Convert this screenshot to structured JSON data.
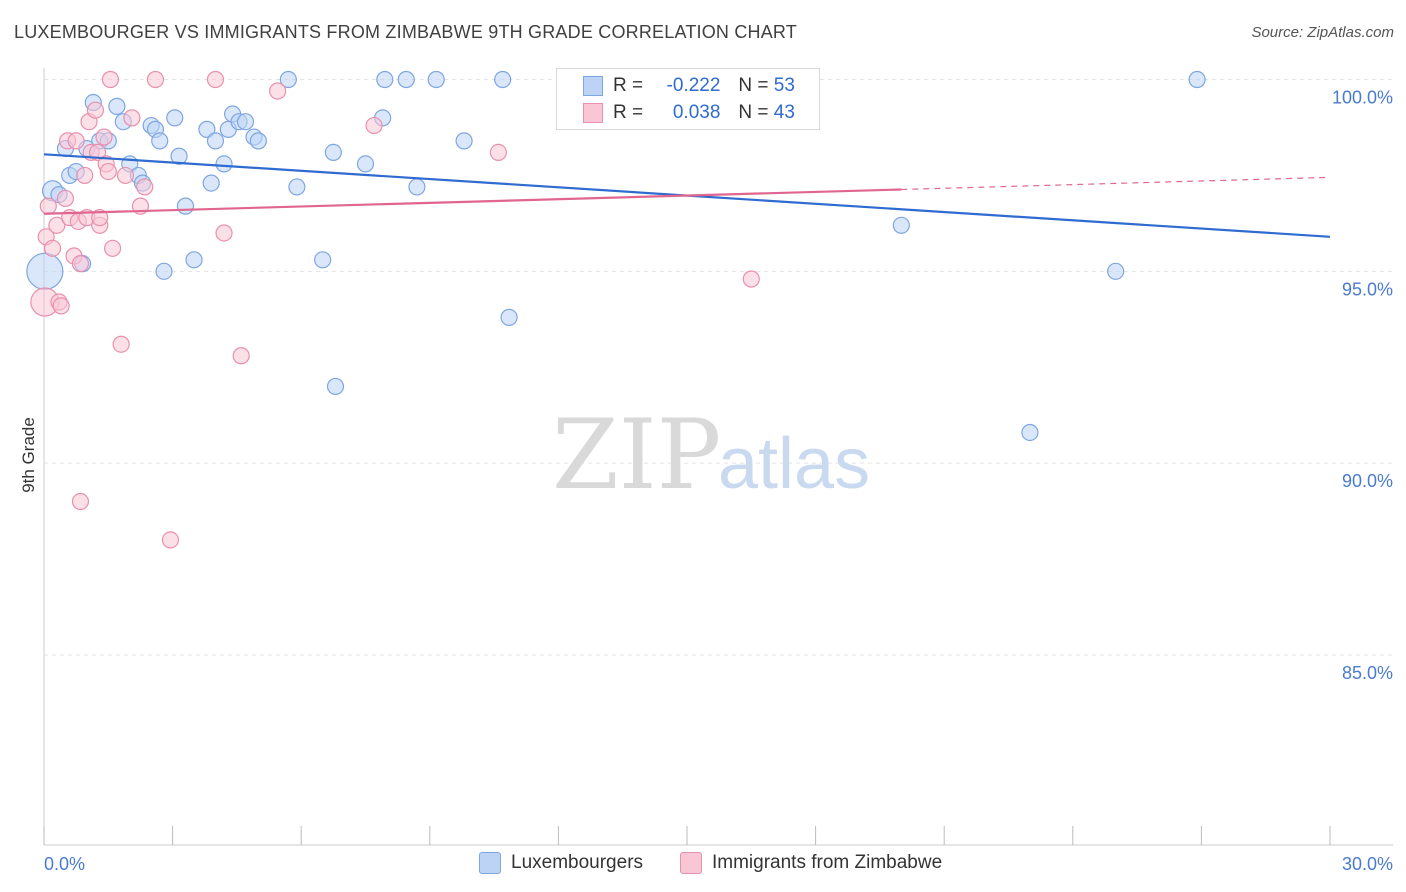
{
  "title": "LUXEMBOURGER VS IMMIGRANTS FROM ZIMBABWE 9TH GRADE CORRELATION CHART",
  "source": "Source: ZipAtlas.com",
  "watermark": {
    "zip": "ZIP",
    "atlas": "atlas"
  },
  "legend": {
    "r_label": "R =",
    "n_label": "N =",
    "rows": [
      {
        "r": "-0.222",
        "n": "53",
        "fill": "#bcd3f5",
        "stroke": "#7ea6e0"
      },
      {
        "r": "0.038",
        "n": "43",
        "fill": "#f9c6d6",
        "stroke": "#e890ad"
      }
    ]
  },
  "bottom_legend": [
    "Luxembourgers",
    "Immigrants from Zimbabwe"
  ],
  "chart_data": {
    "type": "scatter",
    "title": "LUXEMBOURGER VS IMMIGRANTS FROM ZIMBABWE 9TH GRADE CORRELATION CHART",
    "xlabel": "",
    "ylabel": "9th Grade",
    "xlim": [
      0,
      30
    ],
    "ylim": [
      80.5,
      100.7
    ],
    "x_tick_labels": [
      "0.0%",
      "30.0%"
    ],
    "y_ticks": [
      100,
      95,
      90,
      85
    ],
    "y_tick_labels": [
      "100.0%",
      "95.0%",
      "90.0%",
      "85.0%"
    ],
    "grid": true,
    "series": [
      {
        "name": "Luxembourgers",
        "color": "#2f6bd0",
        "fill": "#bcd3f5",
        "stroke": "#7ea6e0",
        "trend": {
          "x0": 0,
          "y0": 98.05,
          "x1": 30,
          "y1": 95.9,
          "solid_until": 30
        },
        "points": [
          [
            0.02,
            95.0,
            18
          ],
          [
            0.2,
            97.1,
            10
          ],
          [
            0.35,
            97.0,
            8
          ],
          [
            0.5,
            98.2,
            8
          ],
          [
            0.6,
            97.5,
            8
          ],
          [
            0.75,
            97.6,
            8
          ],
          [
            0.9,
            95.2,
            8
          ],
          [
            1.0,
            98.2,
            8
          ],
          [
            1.15,
            99.4,
            8
          ],
          [
            1.3,
            98.4,
            8
          ],
          [
            1.5,
            98.4,
            8
          ],
          [
            1.7,
            99.3,
            8
          ],
          [
            1.85,
            98.9,
            8
          ],
          [
            2.0,
            97.8,
            8
          ],
          [
            2.2,
            97.5,
            8
          ],
          [
            2.3,
            97.3,
            8
          ],
          [
            2.5,
            98.8,
            8
          ],
          [
            2.6,
            98.7,
            8
          ],
          [
            2.7,
            98.4,
            8
          ],
          [
            2.8,
            95.0,
            8
          ],
          [
            3.05,
            99.0,
            8
          ],
          [
            3.15,
            98.0,
            8
          ],
          [
            3.3,
            96.7,
            8
          ],
          [
            3.5,
            95.3,
            8
          ],
          [
            3.8,
            98.7,
            8
          ],
          [
            3.9,
            97.3,
            8
          ],
          [
            4.0,
            98.4,
            8
          ],
          [
            4.2,
            97.8,
            8
          ],
          [
            4.3,
            98.7,
            8
          ],
          [
            4.4,
            99.1,
            8
          ],
          [
            4.55,
            98.9,
            8
          ],
          [
            4.7,
            98.9,
            8
          ],
          [
            4.9,
            98.5,
            8
          ],
          [
            5.0,
            98.4,
            8
          ],
          [
            5.7,
            100.0,
            8
          ],
          [
            5.9,
            97.2,
            8
          ],
          [
            6.5,
            95.3,
            8
          ],
          [
            6.75,
            98.1,
            8
          ],
          [
            6.8,
            92.0,
            8
          ],
          [
            7.5,
            97.8,
            8
          ],
          [
            7.9,
            99.0,
            8
          ],
          [
            7.95,
            100.0,
            8
          ],
          [
            8.45,
            100.0,
            8
          ],
          [
            8.7,
            97.2,
            8
          ],
          [
            9.15,
            100.0,
            8
          ],
          [
            9.8,
            98.4,
            8
          ],
          [
            10.7,
            100.0,
            8
          ],
          [
            10.85,
            93.8,
            8
          ],
          [
            20.0,
            96.2,
            8
          ],
          [
            23.0,
            90.8,
            8
          ],
          [
            25.0,
            95.0,
            8
          ],
          [
            26.9,
            100.0,
            8
          ]
        ]
      },
      {
        "name": "Immigrants from Zimbabwe",
        "color": "#e0668f",
        "fill": "#f9c6d6",
        "stroke": "#e890ad",
        "trend": {
          "x0": 0,
          "y0": 96.5,
          "x1": 30,
          "y1": 97.45,
          "solid_until": 20
        },
        "points": [
          [
            0.02,
            94.2,
            14
          ],
          [
            0.05,
            95.9,
            8
          ],
          [
            0.1,
            96.7,
            8
          ],
          [
            0.2,
            95.6,
            8
          ],
          [
            0.3,
            96.2,
            8
          ],
          [
            0.35,
            94.2,
            8
          ],
          [
            0.4,
            94.1,
            8
          ],
          [
            0.5,
            96.9,
            8
          ],
          [
            0.55,
            98.4,
            8
          ],
          [
            0.6,
            96.4,
            8
          ],
          [
            0.7,
            95.4,
            8
          ],
          [
            0.75,
            98.4,
            8
          ],
          [
            0.8,
            96.3,
            8
          ],
          [
            0.85,
            95.2,
            8
          ],
          [
            0.85,
            89.0,
            8
          ],
          [
            0.95,
            97.5,
            8
          ],
          [
            1.0,
            96.4,
            8
          ],
          [
            1.05,
            98.9,
            8
          ],
          [
            1.1,
            98.1,
            8
          ],
          [
            1.2,
            99.2,
            8
          ],
          [
            1.25,
            98.1,
            8
          ],
          [
            1.3,
            96.2,
            8
          ],
          [
            1.3,
            96.4,
            8
          ],
          [
            1.4,
            98.5,
            8
          ],
          [
            1.45,
            97.8,
            8
          ],
          [
            1.5,
            97.6,
            8
          ],
          [
            1.55,
            100.0,
            8
          ],
          [
            1.6,
            95.6,
            8
          ],
          [
            1.8,
            93.1,
            8
          ],
          [
            1.9,
            97.5,
            8
          ],
          [
            2.05,
            99.0,
            8
          ],
          [
            2.25,
            96.7,
            8
          ],
          [
            2.35,
            97.2,
            8
          ],
          [
            2.6,
            100.0,
            8
          ],
          [
            2.95,
            88.0,
            8
          ],
          [
            4.0,
            100.0,
            8
          ],
          [
            4.2,
            96.0,
            8
          ],
          [
            4.6,
            92.8,
            8
          ],
          [
            5.45,
            99.7,
            8
          ],
          [
            7.7,
            98.8,
            8
          ],
          [
            10.6,
            98.1,
            8
          ],
          [
            16.5,
            94.8,
            8
          ]
        ]
      }
    ]
  }
}
